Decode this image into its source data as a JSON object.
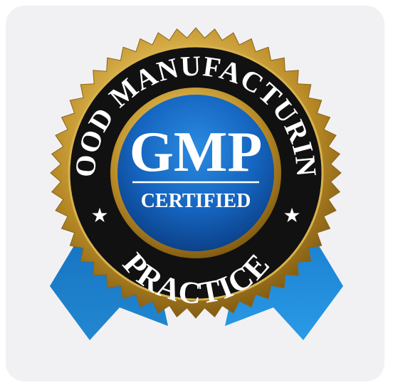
{
  "badge": {
    "ring_top_text": "GOOD MANUFACTURING",
    "ring_bottom_text": "PRACTICE",
    "acronym": "GMP",
    "status": "CERTIFIED",
    "star_glyph": "★",
    "icon": "gmp-certified-seal-icon"
  },
  "colors": {
    "card_background": "#f1f1f3",
    "gold": "#c9a13b",
    "ring": "#111111",
    "center_blue": "#1565c0",
    "ribbon_blue": "#1f8ad8",
    "text_white": "#ffffff"
  }
}
